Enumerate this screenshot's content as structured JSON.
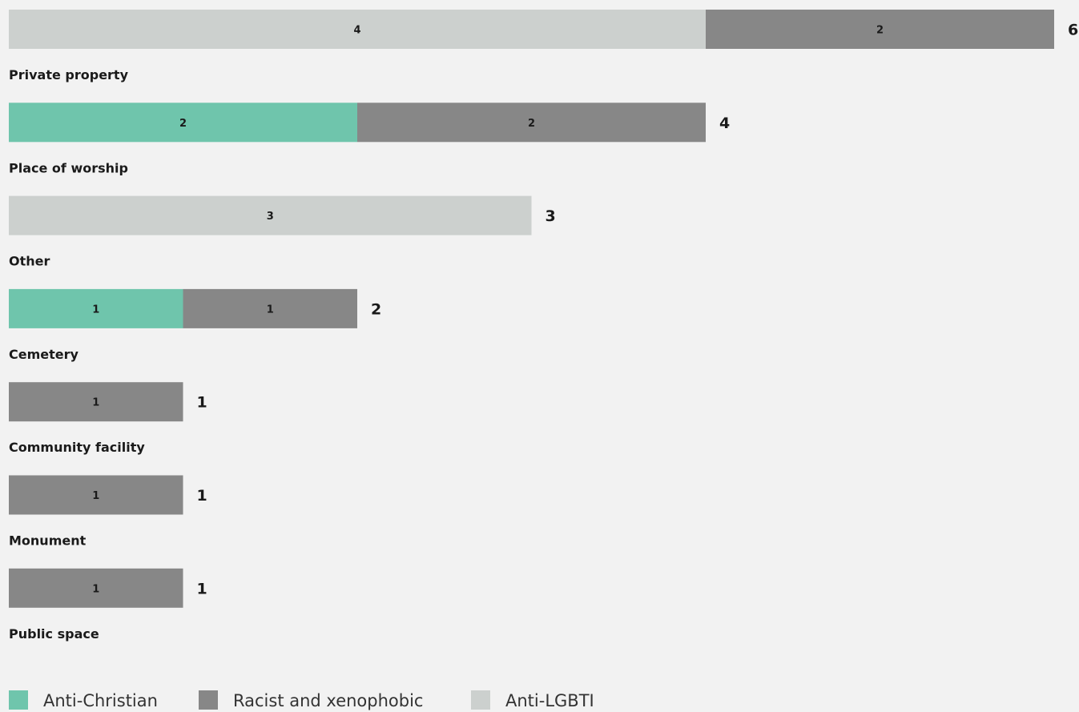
{
  "chart_data": {
    "type": "bar",
    "orientation": "horizontal",
    "stacked": true,
    "categories": [
      "Private property",
      "Place of worship",
      "Other",
      "Cemetery",
      "Community facility",
      "Monument",
      "Public space"
    ],
    "series": [
      {
        "name": "Anti-LGBTI",
        "color": "#ccd0ce",
        "values": [
          4,
          0,
          3,
          0,
          0,
          0,
          0
        ]
      },
      {
        "name": "Anti-Christian",
        "color": "#6fc5ac",
        "values": [
          0,
          2,
          0,
          1,
          0,
          0,
          0
        ]
      },
      {
        "name": "Racist and xenophobic",
        "color": "#878787",
        "values": [
          2,
          2,
          0,
          1,
          1,
          1,
          1
        ]
      }
    ],
    "totals": [
      6,
      4,
      3,
      2,
      1,
      1,
      1
    ],
    "xlim": [
      0,
      6
    ],
    "grid": false,
    "legend": {
      "placement": "bottom-left",
      "order": [
        "Anti-Christian",
        "Racist and xenophobic",
        "Anti-LGBTI"
      ]
    }
  }
}
